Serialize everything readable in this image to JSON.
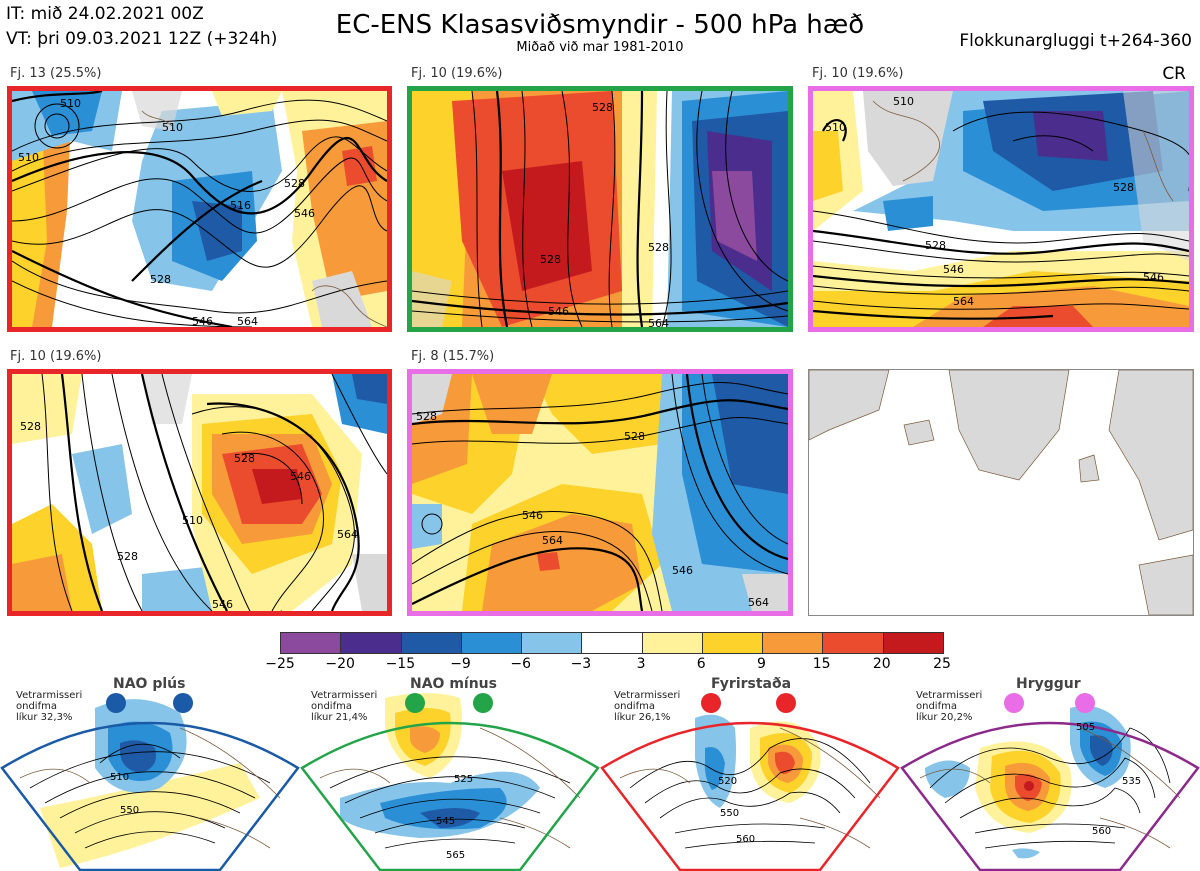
{
  "header": {
    "it": "IT: mið 24.02.2021 00Z",
    "vt": "VT: þri 09.03.2021 12Z  (+324h)",
    "title": "EC-ENS Klasasviðsmyndir - 500 hPa hæð",
    "subtitle": "Miðað við mar 1981-2010",
    "window": "Flokkunargluggi t+264-360",
    "corner": "CR"
  },
  "colors": {
    "land": "#d9d9d9",
    "coast": "#7a5a3a",
    "contour": "#000000",
    "red_frame": "#e8262a",
    "green_frame": "#24a449",
    "magenta_frame": "#e86de6",
    "blue_frame": "#1a5aa6",
    "purple_frame": "#8b2a8a"
  },
  "clusters": [
    {
      "label": "Fj. 13 (25.5%)",
      "frame": "red",
      "contour_labels": [
        "510",
        "510",
        "510",
        "516",
        "528",
        "528",
        "546",
        "546",
        "564"
      ]
    },
    {
      "label": "Fj. 10 (19.6%)",
      "frame": "green",
      "contour_labels": [
        "528",
        "528",
        "528",
        "546",
        "564"
      ]
    },
    {
      "label": "Fj. 10 (19.6%)",
      "frame": "magenta",
      "contour_labels": [
        "510",
        "510",
        "528",
        "528",
        "546",
        "546",
        "564"
      ]
    },
    {
      "label": "Fj. 10 (19.6%)",
      "frame": "red",
      "contour_labels": [
        "528",
        "528",
        "510",
        "528",
        "546",
        "546",
        "564"
      ]
    },
    {
      "label": "Fj. 8 (15.7%)",
      "frame": "magenta",
      "contour_labels": [
        "528",
        "528",
        "546",
        "546",
        "564",
        "564"
      ]
    },
    {
      "label": "",
      "frame": "none",
      "contour_labels": []
    }
  ],
  "colorbar": {
    "ticks": [
      "−25",
      "−20",
      "−15",
      "−9",
      "−6",
      "−3",
      "3",
      "6",
      "9",
      "15",
      "20",
      "25"
    ],
    "colors": [
      "#8b4a9e",
      "#4a2d8c",
      "#1f5aa6",
      "#2b8fd6",
      "#86c4ea",
      "#ffffff",
      "#fff29a",
      "#fdd22a",
      "#f79a3a",
      "#eb4c2e",
      "#c41a1e"
    ]
  },
  "regimes": [
    {
      "title": "NAO plús",
      "note": [
        "Vetrarmisseri",
        "ondifma",
        "líkur 32,3%"
      ],
      "dot_color": "#1a5aa6",
      "frame": "blue",
      "contour_labels": [
        "510",
        "550"
      ]
    },
    {
      "title": "NAO mínus",
      "note": [
        "Vetrarmisseri",
        "ondifma",
        "líkur 21,4%"
      ],
      "dot_color": "#24a449",
      "frame": "green",
      "contour_labels": [
        "525",
        "545",
        "565"
      ]
    },
    {
      "title": "Fyrirstaða",
      "note": [
        "Vetrarmisseri",
        "ondifma",
        "líkur 26,1%"
      ],
      "dot_color": "#e8262a",
      "frame": "red",
      "contour_labels": [
        "520",
        "550",
        "560"
      ]
    },
    {
      "title": "Hryggur",
      "note": [
        "Vetrarmisseri",
        "ondifma",
        "líkur 20,2%"
      ],
      "dot_color": "#e86de6",
      "frame": "purple",
      "contour_labels": [
        "505",
        "535",
        "560"
      ]
    }
  ]
}
